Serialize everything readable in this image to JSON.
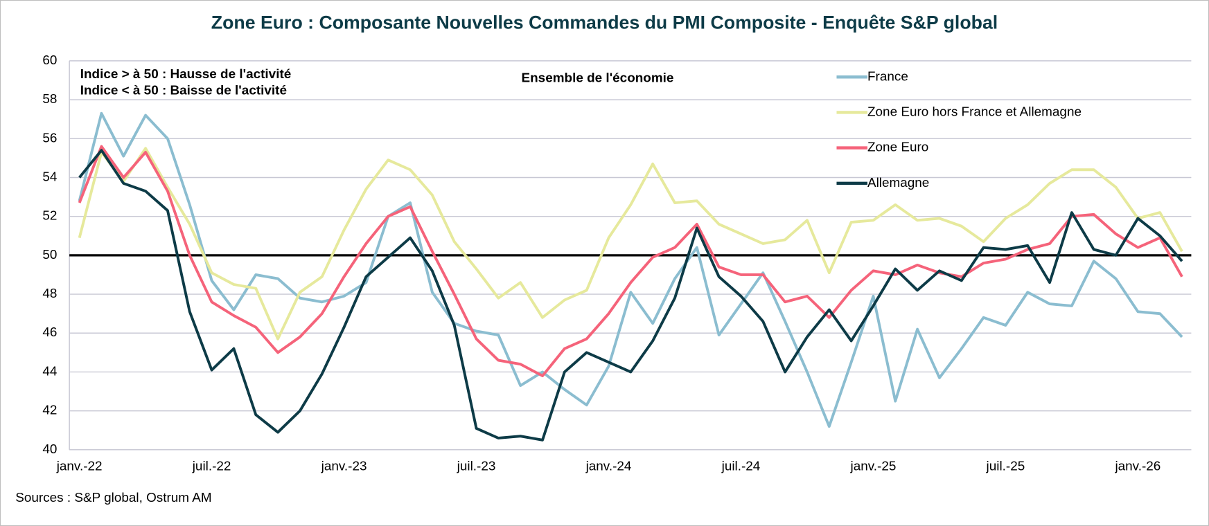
{
  "chart_data": {
    "type": "line",
    "title": "Zone Euro : Composante Nouvelles Commandes du PMI Composite - Enquête S&P global",
    "annotations": [
      "Indice > à 50 : Hausse de l'activité",
      "Indice < à 50 : Baisse de l'activité"
    ],
    "subtitle": "Ensemble de l'économie",
    "source": "Sources : S&P global, Ostrum AM",
    "categories": [
      "janv.-22",
      null,
      null,
      null,
      null,
      null,
      "juil.-22",
      null,
      null,
      null,
      null,
      null,
      "janv.-23",
      null,
      null,
      null,
      null,
      null,
      "juil.-23",
      null,
      null,
      null,
      null,
      null,
      "janv.-24",
      null,
      null,
      null,
      null,
      null,
      "juil.-24",
      null,
      null,
      null,
      null,
      null,
      "janv.-25",
      null,
      null,
      null,
      null,
      null,
      "juil.-25",
      null,
      null,
      null,
      null,
      null,
      "janv.-26",
      null,
      null
    ],
    "series": [
      {
        "name": "France",
        "color": "#8bbdd0",
        "values": [
          52.8,
          57.3,
          55.1,
          57.2,
          56.0,
          52.6,
          48.7,
          47.2,
          49.0,
          48.8,
          47.8,
          47.6,
          47.9,
          48.6,
          52.0,
          52.7,
          48.1,
          46.5,
          46.1,
          45.9,
          43.3,
          44.0,
          43.1,
          42.3,
          44.3,
          48.1,
          46.5,
          48.8,
          50.4,
          45.9,
          47.5,
          49.1,
          46.6,
          44.0,
          41.2,
          44.5,
          47.9,
          42.5,
          46.2,
          43.7,
          45.2,
          46.8,
          46.4,
          48.1,
          47.5,
          47.4,
          49.7,
          48.8,
          47.1,
          47.0,
          45.8
        ]
      },
      {
        "name": "Zone Euro hors France et Allemagne",
        "color": "#e6e99c",
        "values": [
          50.9,
          55.3,
          53.8,
          55.5,
          53.5,
          51.6,
          49.1,
          48.5,
          48.3,
          45.7,
          48.1,
          48.9,
          51.3,
          53.4,
          54.9,
          54.4,
          53.1,
          50.7,
          49.3,
          47.8,
          48.6,
          46.8,
          47.7,
          48.2,
          50.9,
          52.6,
          54.7,
          52.7,
          52.8,
          51.6,
          51.1,
          50.6,
          50.8,
          51.8,
          49.1,
          51.7,
          51.8,
          52.6,
          51.8,
          51.9,
          51.5,
          50.7,
          51.9,
          52.6,
          53.7,
          54.4,
          54.4,
          53.5,
          51.9,
          52.2,
          50.2
        ]
      },
      {
        "name": "Zone Euro",
        "color": "#f5637a",
        "values": [
          52.7,
          55.6,
          54.0,
          55.3,
          53.3,
          50.0,
          47.6,
          46.9,
          46.3,
          45.0,
          45.8,
          47.0,
          48.9,
          50.6,
          52.0,
          52.5,
          50.2,
          48.0,
          45.7,
          44.6,
          44.4,
          43.8,
          45.2,
          45.7,
          47.0,
          48.6,
          49.9,
          50.4,
          51.6,
          49.4,
          49.0,
          49.0,
          47.6,
          47.9,
          46.8,
          48.2,
          49.2,
          49.0,
          49.5,
          49.1,
          48.9,
          49.6,
          49.8,
          50.3,
          50.6,
          52.0,
          52.1,
          51.1,
          50.4,
          50.9,
          48.9
        ]
      },
      {
        "name": "Allemagne",
        "color": "#0d3b47",
        "values": [
          54.0,
          55.4,
          53.7,
          53.3,
          52.3,
          47.1,
          44.1,
          45.2,
          41.8,
          40.9,
          42.0,
          43.9,
          46.3,
          48.9,
          49.9,
          50.9,
          49.2,
          46.4,
          41.1,
          40.6,
          40.7,
          40.5,
          44.0,
          45.0,
          44.5,
          44.0,
          45.6,
          47.8,
          51.4,
          48.9,
          47.9,
          46.6,
          44.0,
          45.8,
          47.2,
          45.6,
          47.4,
          49.3,
          48.2,
          49.2,
          48.7,
          50.4,
          50.3,
          50.5,
          48.6,
          52.2,
          50.3,
          50.0,
          51.9,
          51.0,
          49.7
        ]
      }
    ],
    "ylim": [
      40,
      60
    ],
    "yticks": [
      40,
      42,
      44,
      46,
      48,
      50,
      52,
      54,
      56,
      58,
      60
    ],
    "reference_line": 50,
    "grid": true,
    "legend": "top-right"
  }
}
